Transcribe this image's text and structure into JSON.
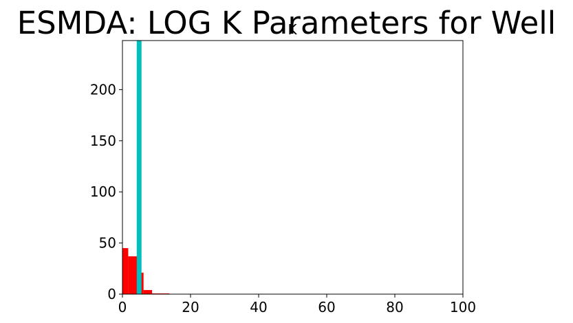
{
  "figure": {
    "suptitle": "ESMDA: LOG K Parameters for Well"
  },
  "chart_data": {
    "type": "bar",
    "title": "K",
    "xlabel": "",
    "ylabel": "",
    "xlim": [
      0,
      100
    ],
    "ylim": [
      0,
      248
    ],
    "grid": false,
    "x_ticks": [
      0,
      20,
      40,
      60,
      80,
      100
    ],
    "y_ticks": [
      0,
      50,
      100,
      150,
      200
    ],
    "x_tick_labels": [
      "0",
      "20",
      "40",
      "60",
      "80",
      "100"
    ],
    "y_tick_labels": [
      "0",
      "50",
      "100",
      "150",
      "200"
    ],
    "series": [
      {
        "kind": "histogram",
        "color": "#ff0000",
        "bins": [
          {
            "x0": 0.0,
            "x1": 1.7,
            "count": 45
          },
          {
            "x0": 1.7,
            "x1": 4.3,
            "count": 37
          },
          {
            "x0": 4.3,
            "x1": 5.4,
            "count": 37
          },
          {
            "x0": 5.4,
            "x1": 6.2,
            "count": 21
          },
          {
            "x0": 6.2,
            "x1": 8.7,
            "count": 4
          },
          {
            "x0": 8.7,
            "x1": 11.3,
            "count": 0.7
          },
          {
            "x0": 11.3,
            "x1": 13.8,
            "count": 0.7
          }
        ]
      },
      {
        "kind": "highlight",
        "color": "#00bfbf",
        "bins": [
          {
            "x0": 4.2,
            "x1": 5.6,
            "count": 248
          }
        ]
      }
    ]
  }
}
